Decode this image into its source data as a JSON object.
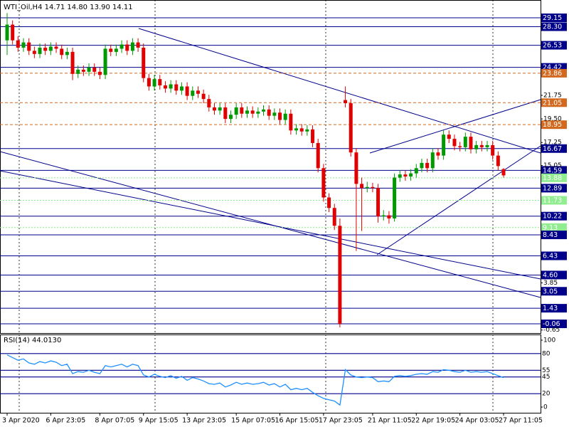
{
  "chart_data": [
    {
      "type": "candlestick",
      "title": "WTI_Oil,H4  14.71 14.80 13.90 14.11",
      "categories": [
        "3 Apr 2020",
        null,
        null,
        null,
        null,
        null,
        null,
        null,
        "6 Apr 23:05",
        null,
        null,
        null,
        null,
        null,
        null,
        null,
        null,
        "8 Apr 07:05",
        null,
        null,
        null,
        null,
        null,
        null,
        null,
        "9 Apr 15:05",
        null,
        null,
        null,
        null,
        null,
        null,
        null,
        "13 Apr 23:05",
        null,
        null,
        null,
        null,
        null,
        null,
        null,
        null,
        "15 Apr 07:05",
        null,
        null,
        null,
        null,
        null,
        null,
        null,
        "16 Apr 15:05",
        null,
        null,
        null,
        null,
        null,
        null,
        null,
        "17 Apr 23:05",
        null,
        null,
        null,
        null,
        null,
        null,
        null,
        null,
        "21 Apr 11:05",
        null,
        null,
        null,
        null,
        null,
        null,
        null,
        "22 Apr 19:05",
        null,
        null,
        null,
        null,
        null,
        null,
        null,
        "24 Apr 03:05",
        null,
        null,
        null,
        null,
        null,
        null,
        null,
        "27 Apr 11:05"
      ],
      "open": [
        27.0,
        28.5,
        27.0,
        26.3,
        26.8,
        26.0,
        25.7,
        26.3,
        26.0,
        26.4,
        26.2,
        25.6,
        25.9,
        23.8,
        24.2,
        24.0,
        24.4,
        24.0,
        23.7,
        26.2,
        25.9,
        26.2,
        26.6,
        26.0,
        26.8,
        26.3,
        23.4,
        22.6,
        23.3,
        22.7,
        22.4,
        22.8,
        22.2,
        22.6,
        21.7,
        22.2,
        21.9,
        21.4,
        20.6,
        20.3,
        20.6,
        19.5,
        19.9,
        20.6,
        20.0,
        20.3,
        20.0,
        20.2,
        20.4,
        19.8,
        20.1,
        19.4,
        20.0,
        18.4,
        18.6,
        18.3,
        18.5,
        17.2,
        14.8,
        12.0,
        11.0,
        9.3,
        21.3,
        21.0,
        16.3,
        13.3,
        12.9,
        13.0,
        12.9,
        10.2,
        10.3,
        10.0,
        13.9,
        14.2,
        14.0,
        14.3,
        14.8,
        15.3,
        14.8,
        16.3,
        16.0,
        18.0,
        17.6,
        16.9,
        16.8,
        17.8,
        16.6,
        17.0,
        16.8,
        17.0,
        16.0,
        14.71
      ],
      "high": [
        29.6,
        28.9,
        27.4,
        27.2,
        27.2,
        26.4,
        26.7,
        26.7,
        26.8,
        26.8,
        26.6,
        26.3,
        26.3,
        24.6,
        24.6,
        24.8,
        24.8,
        24.4,
        26.6,
        26.6,
        26.6,
        27.0,
        27.0,
        27.2,
        27.2,
        26.7,
        23.8,
        23.7,
        23.7,
        23.1,
        23.2,
        23.2,
        23.0,
        23.0,
        22.6,
        22.6,
        22.3,
        21.8,
        21.0,
        21.0,
        21.0,
        20.3,
        21.0,
        21.0,
        20.7,
        20.7,
        20.6,
        20.8,
        20.8,
        20.5,
        20.5,
        20.4,
        20.4,
        19.0,
        19.0,
        18.9,
        18.9,
        17.6,
        15.2,
        12.4,
        11.4,
        10.0,
        22.6,
        21.4,
        16.7,
        13.9,
        13.5,
        13.4,
        13.3,
        10.8,
        10.7,
        14.3,
        14.6,
        14.6,
        14.7,
        15.2,
        15.7,
        15.7,
        16.7,
        16.7,
        18.4,
        18.4,
        18.0,
        17.3,
        18.2,
        18.2,
        17.4,
        17.4,
        17.4,
        17.4,
        16.4,
        14.8
      ],
      "low": [
        25.6,
        26.6,
        25.9,
        25.9,
        25.6,
        25.3,
        25.3,
        25.6,
        25.6,
        25.8,
        25.2,
        25.2,
        23.2,
        23.4,
        23.6,
        23.6,
        23.6,
        23.3,
        23.3,
        25.5,
        25.5,
        25.8,
        25.6,
        25.6,
        25.9,
        23.0,
        22.2,
        22.2,
        22.3,
        22.0,
        22.0,
        21.8,
        21.8,
        21.3,
        21.3,
        21.5,
        21.0,
        20.2,
        19.9,
        19.9,
        19.1,
        19.1,
        19.5,
        19.6,
        19.6,
        19.6,
        19.6,
        19.8,
        19.4,
        19.4,
        19.0,
        19.0,
        18.0,
        18.0,
        17.9,
        17.9,
        16.8,
        14.4,
        11.6,
        10.6,
        8.9,
        -0.4,
        20.6,
        15.9,
        6.9,
        8.8,
        12.5,
        12.5,
        9.6,
        9.8,
        9.5,
        9.7,
        13.5,
        13.6,
        13.6,
        13.9,
        14.4,
        14.4,
        14.4,
        15.6,
        15.6,
        17.2,
        16.5,
        16.4,
        16.4,
        16.2,
        16.2,
        16.4,
        16.4,
        15.6,
        14.6,
        13.9
      ],
      "close": [
        28.5,
        27.0,
        26.3,
        26.8,
        26.0,
        25.7,
        26.3,
        26.0,
        26.4,
        26.2,
        25.6,
        25.9,
        23.8,
        24.2,
        24.0,
        24.4,
        24.0,
        23.7,
        26.2,
        25.9,
        26.2,
        26.6,
        26.0,
        26.8,
        26.3,
        23.4,
        22.6,
        23.3,
        22.7,
        22.4,
        22.8,
        22.2,
        22.6,
        21.7,
        22.2,
        21.9,
        21.4,
        20.6,
        20.3,
        20.6,
        19.5,
        19.9,
        20.6,
        20.0,
        20.3,
        20.0,
        20.2,
        20.4,
        19.8,
        20.1,
        19.4,
        20.0,
        18.4,
        18.6,
        18.3,
        18.5,
        17.2,
        14.8,
        12.0,
        11.0,
        9.3,
        -0.06,
        21.0,
        16.3,
        13.3,
        12.9,
        13.0,
        12.9,
        10.2,
        10.3,
        10.0,
        13.9,
        14.2,
        14.0,
        14.3,
        14.8,
        15.3,
        14.8,
        16.3,
        16.0,
        18.0,
        17.6,
        16.9,
        16.8,
        17.8,
        16.6,
        17.0,
        16.8,
        17.0,
        16.0,
        15.0,
        14.11
      ],
      "up_color": "#009900",
      "down_color": "#e00000",
      "ylim": [
        -0.94,
        30.85
      ],
      "yticks": [
        21.75,
        {
          "value": 19.5,
          "label": "19.50"
        },
        17.25,
        15.05,
        3.85,
        -0.65
      ],
      "levels": [
        {
          "value": 29.15,
          "color": "#00008b",
          "line": "solid"
        },
        {
          "value": 28.3,
          "label": "28.30",
          "color": "#00008b",
          "line": "solid"
        },
        {
          "value": 26.53,
          "color": "#00008b",
          "line": "solid"
        },
        {
          "value": 24.42,
          "color": "#00008b",
          "line": "solid"
        },
        {
          "value": 23.86,
          "color": "#d2691e",
          "line": "dash"
        },
        {
          "value": 21.05,
          "color": "#d2691e",
          "line": "dash"
        },
        {
          "value": 18.95,
          "color": "#d2691e",
          "line": "dash"
        },
        {
          "value": 16.67,
          "color": "#00008b",
          "line": "solid"
        },
        {
          "value": 14.59,
          "color": "#00008b",
          "line": "solid"
        },
        {
          "value": 13.88,
          "color": "#90ee90",
          "line": "dot"
        },
        {
          "value": 12.89,
          "color": "#00008b",
          "line": "solid"
        },
        {
          "value": 11.73,
          "color": "#90ee90",
          "line": "dot"
        },
        {
          "value": 10.22,
          "color": "#00008b",
          "line": "solid"
        },
        {
          "value": 9.13,
          "color": "#90ee90",
          "line": "dot"
        },
        {
          "value": 8.43,
          "color": "#00008b",
          "line": "solid"
        },
        {
          "value": 6.43,
          "color": "#00008b",
          "line": "solid"
        },
        {
          "value": 4.6,
          "label": "4.60",
          "color": "#00008b",
          "line": "solid"
        },
        {
          "value": 3.05,
          "color": "#00008b",
          "line": "solid"
        },
        {
          "value": 1.43,
          "color": "#00008b",
          "line": "solid"
        },
        {
          "value": -0.06,
          "color": "#00008b",
          "line": "solid"
        }
      ]
    },
    {
      "type": "line",
      "title": "RSI(14) 44.0130",
      "color": "#1e90ff",
      "values": [
        78,
        74,
        70,
        72,
        66,
        64,
        68,
        66,
        69,
        67,
        62,
        64,
        50,
        53,
        52,
        55,
        52,
        50,
        62,
        60,
        62,
        64,
        60,
        64,
        62,
        48,
        45,
        49,
        46,
        44,
        47,
        43,
        46,
        40,
        44,
        42,
        39,
        35,
        34,
        36,
        30,
        33,
        37,
        34,
        36,
        34,
        35,
        37,
        33,
        35,
        30,
        34,
        26,
        28,
        26,
        28,
        22,
        17,
        13,
        11,
        9,
        3,
        56,
        48,
        45,
        44,
        45,
        44,
        38,
        39,
        38,
        46,
        47,
        46,
        47,
        49,
        50,
        49,
        53,
        52,
        56,
        55,
        53,
        52,
        55,
        52,
        53,
        52,
        53,
        50,
        47,
        44.013
      ],
      "ylim": [
        0,
        100
      ],
      "yticks": [
        100,
        0
      ],
      "levels": [
        80,
        55,
        45,
        20
      ],
      "level_color": "#00008b"
    }
  ]
}
